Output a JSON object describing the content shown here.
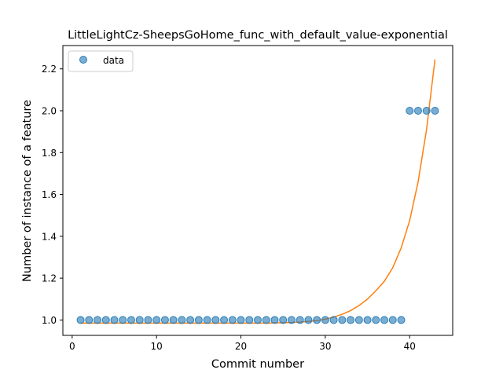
{
  "chart_data": {
    "type": "scatter",
    "title": "LittleLightCz-SheepsGoHome_func_with_default_value-exponential",
    "xlabel": "Commit number",
    "ylabel": "Number of instance of a feature",
    "xlim": [
      -1.1,
      45.1
    ],
    "ylim": [
      0.9265,
      2.3115
    ],
    "xticks": [
      0,
      10,
      20,
      30,
      40
    ],
    "xtick_labels": [
      "0",
      "10",
      "20",
      "30",
      "40"
    ],
    "yticks": [
      1.0,
      1.2,
      1.4,
      1.6,
      1.8,
      2.0,
      2.2
    ],
    "ytick_labels": [
      "1.0",
      "1.2",
      "1.4",
      "1.6",
      "1.8",
      "2.0",
      "2.2"
    ],
    "grid": false,
    "legend": {
      "position": "top-left",
      "entries": [
        "data"
      ]
    },
    "series": [
      {
        "name": "data",
        "kind": "scatter",
        "color": "#1f77b4",
        "x": [
          1,
          2,
          3,
          4,
          5,
          6,
          7,
          8,
          9,
          10,
          11,
          12,
          13,
          14,
          15,
          16,
          17,
          18,
          19,
          20,
          21,
          22,
          23,
          24,
          25,
          26,
          27,
          28,
          29,
          30,
          31,
          32,
          33,
          34,
          35,
          36,
          37,
          38,
          39,
          40,
          41,
          42,
          43
        ],
        "y": [
          1,
          1,
          1,
          1,
          1,
          1,
          1,
          1,
          1,
          1,
          1,
          1,
          1,
          1,
          1,
          1,
          1,
          1,
          1,
          1,
          1,
          1,
          1,
          1,
          1,
          1,
          1,
          1,
          1,
          1,
          1,
          1,
          1,
          1,
          1,
          1,
          1,
          1,
          1,
          2,
          2,
          2,
          2
        ]
      },
      {
        "kind": "line",
        "color": "#ff7f0e",
        "x": [
          1,
          2,
          3,
          4,
          5,
          6,
          7,
          8,
          9,
          10,
          11,
          12,
          13,
          14,
          15,
          16,
          17,
          18,
          19,
          20,
          21,
          22,
          23,
          24,
          25,
          26,
          27,
          28,
          29,
          30,
          31,
          32,
          33,
          34,
          35,
          36,
          37,
          38,
          39,
          40,
          41,
          42,
          43
        ],
        "y": [
          0.985,
          0.985,
          0.985,
          0.985,
          0.985,
          0.985,
          0.985,
          0.985,
          0.985,
          0.985,
          0.985,
          0.985,
          0.985,
          0.985,
          0.985,
          0.985,
          0.985,
          0.985,
          0.985,
          0.985,
          0.985,
          0.985,
          0.985,
          0.986,
          0.987,
          0.988,
          0.99,
          0.993,
          0.997,
          1.004,
          1.014,
          1.027,
          1.045,
          1.069,
          1.1,
          1.14,
          1.185,
          1.25,
          1.345,
          1.475,
          1.66,
          1.91,
          2.245
        ]
      }
    ]
  }
}
